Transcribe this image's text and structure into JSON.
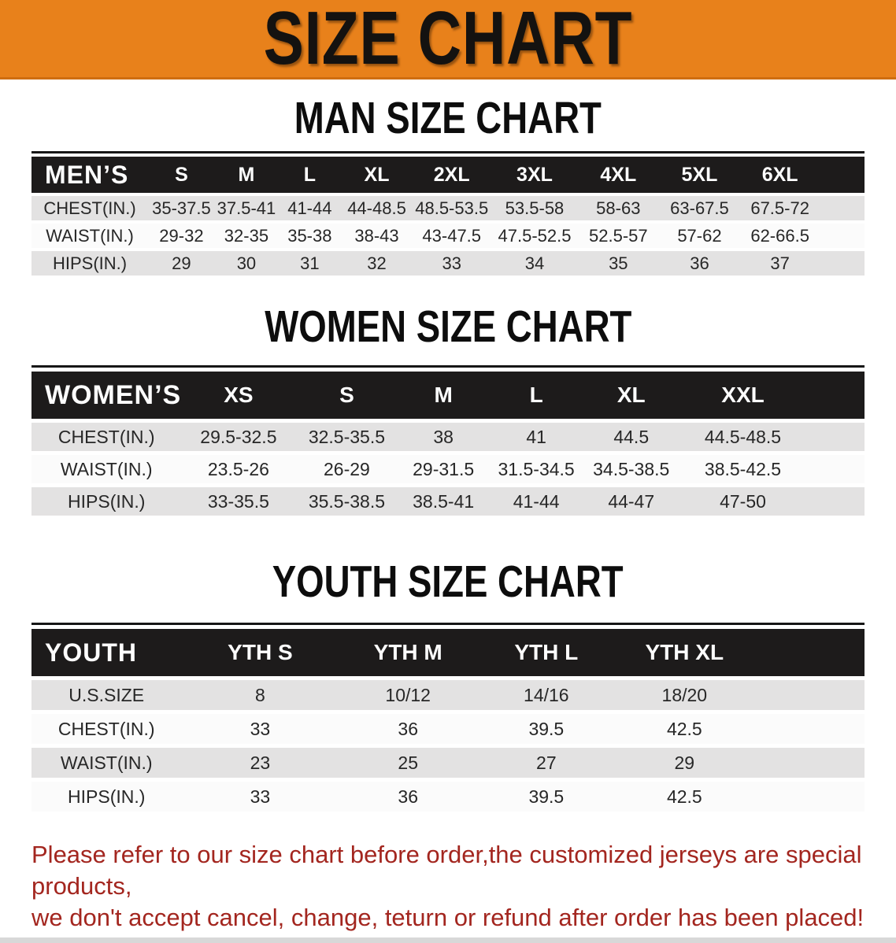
{
  "banner": {
    "title": "SIZE CHART"
  },
  "sections": [
    {
      "id": "men",
      "title": "MAN SIZE CHART",
      "table": {
        "corner_label": "MEN’S",
        "columns": [
          "S",
          "M",
          "L",
          "XL",
          "2XL",
          "3XL",
          "4XL",
          "5XL",
          "6XL"
        ],
        "rows": [
          {
            "label": "CHEST(IN.)",
            "values": [
              "35-37.5",
              "37.5-41",
              "41-44",
              "44-48.5",
              "48.5-53.5",
              "53.5-58",
              "58-63",
              "63-67.5",
              "67.5-72"
            ]
          },
          {
            "label": "WAIST(IN.)",
            "values": [
              "29-32",
              "32-35",
              "35-38",
              "38-43",
              "43-47.5",
              "47.5-52.5",
              "52.5-57",
              "57-62",
              "62-66.5"
            ]
          },
          {
            "label": "HIPS(IN.)",
            "values": [
              "29",
              "30",
              "31",
              "32",
              "33",
              "34",
              "35",
              "36",
              "37"
            ]
          }
        ]
      }
    },
    {
      "id": "women",
      "title": "WOMEN SIZE CHART",
      "table": {
        "corner_label": "WOMEN’S",
        "columns": [
          "XS",
          "S",
          "M",
          "L",
          "XL",
          "XXL"
        ],
        "rows": [
          {
            "label": "CHEST(IN.)",
            "values": [
              "29.5-32.5",
              "32.5-35.5",
              "38",
              "41",
              "44.5",
              "44.5-48.5"
            ]
          },
          {
            "label": "WAIST(IN.)",
            "values": [
              "23.5-26",
              "26-29",
              "29-31.5",
              "31.5-34.5",
              "34.5-38.5",
              "38.5-42.5"
            ]
          },
          {
            "label": "HIPS(IN.)",
            "values": [
              "33-35.5",
              "35.5-38.5",
              "38.5-41",
              "41-44",
              "44-47",
              "47-50"
            ]
          }
        ]
      }
    },
    {
      "id": "youth",
      "title": "YOUTH SIZE CHART",
      "table": {
        "corner_label": "YOUTH",
        "columns": [
          "YTH S",
          "YTH M",
          "YTH L",
          "YTH XL"
        ],
        "rows": [
          {
            "label": "U.S.SIZE",
            "values": [
              "8",
              "10/12",
              "14/16",
              "18/20"
            ]
          },
          {
            "label": "CHEST(IN.)",
            "values": [
              "33",
              "36",
              "39.5",
              "42.5"
            ]
          },
          {
            "label": "WAIST(IN.)",
            "values": [
              "23",
              "25",
              "27",
              "29"
            ]
          },
          {
            "label": "HIPS(IN.)",
            "values": [
              "33",
              "36",
              "39.5",
              "42.5"
            ]
          }
        ]
      }
    }
  ],
  "footer": {
    "line1": "Please refer to our size chart before order,the customized jerseys are special products,",
    "line2": "we don't accept cancel, change, teturn or refund after order has been placed!"
  },
  "colors": {
    "banner_orange": "#E8811B",
    "header_black": "#1D1B1B",
    "row_gray": "#E3E2E2",
    "row_white": "#FBFBFB",
    "notice_red": "#A3261F"
  }
}
